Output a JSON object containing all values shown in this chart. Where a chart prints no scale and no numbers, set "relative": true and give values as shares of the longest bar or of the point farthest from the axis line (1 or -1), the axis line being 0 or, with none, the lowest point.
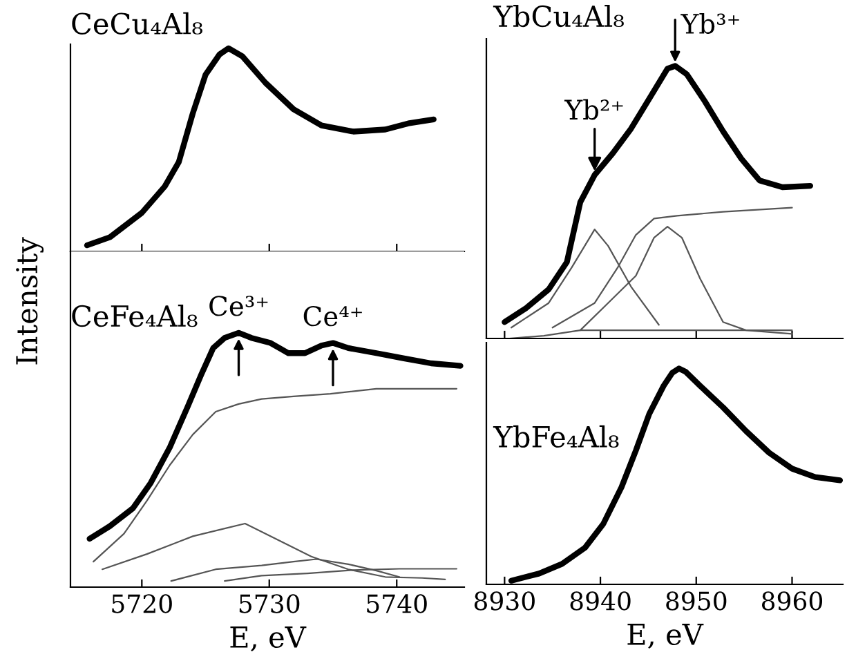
{
  "chart_data": [
    {
      "type": "line",
      "relative": true,
      "title": "CeCu₄Al₈",
      "tick_labels": false,
      "xlim": [
        5714.4,
        5745.3
      ],
      "xticks": [
        5720,
        5730,
        5740
      ],
      "series": [
        {
          "color": "#000000",
          "x": [
            5715.7,
            5717.5,
            5720.0,
            5721.8,
            5722.9,
            5724.0,
            5725.0,
            5726.1,
            5726.8,
            5727.9,
            5729.7,
            5731.9,
            5734.1,
            5736.6,
            5739.1,
            5740.9,
            5742.9
          ],
          "values": [
            0.03,
            0.07,
            0.19,
            0.32,
            0.44,
            0.68,
            0.87,
            0.97,
            1.0,
            0.96,
            0.83,
            0.7,
            0.62,
            0.59,
            0.6,
            0.63,
            0.65
          ]
        }
      ]
    },
    {
      "type": "line",
      "relative": true,
      "title": "CeFe₄Al₈",
      "xlabel": "E, eV",
      "ylabel": "Intensity",
      "tick_labels": "x",
      "xlim": [
        5714.4,
        5745.3
      ],
      "xticks": [
        5720,
        5730,
        5740
      ],
      "annotations": [
        {
          "text": "Ce³⁺",
          "x": 5727.6,
          "y": 1.0
        },
        {
          "text": "Ce⁴⁺",
          "x": 5735.0,
          "y": 0.96
        }
      ],
      "series": [
        {
          "color": "#000000",
          "x": [
            5715.9,
            5717.5,
            5719.3,
            5720.7,
            5722.2,
            5723.6,
            5724.7,
            5725.6,
            5726.5,
            5727.6,
            5728.6,
            5730.1,
            5731.5,
            5732.8,
            5734.1,
            5735.0,
            5736.2,
            5738.4,
            5740.5,
            5742.7,
            5745.0
          ],
          "values": [
            0.19,
            0.24,
            0.31,
            0.41,
            0.55,
            0.71,
            0.84,
            0.94,
            0.98,
            1.0,
            0.98,
            0.96,
            0.92,
            0.92,
            0.95,
            0.96,
            0.94,
            0.92,
            0.9,
            0.88,
            0.87
          ]
        },
        {
          "color": "#555555",
          "x": [
            5716.2,
            5718.6,
            5720.4,
            5722.2,
            5724.0,
            5725.8,
            5727.6,
            5729.4,
            5731.9,
            5734.8,
            5738.4,
            5744.7
          ],
          "values": [
            0.1,
            0.21,
            0.34,
            0.48,
            0.6,
            0.69,
            0.72,
            0.74,
            0.75,
            0.76,
            0.78,
            0.78
          ]
        },
        {
          "color": "#555555",
          "x": [
            5716.9,
            5720.4,
            5724.0,
            5728.1,
            5730.5,
            5733.3,
            5736.2,
            5739.1,
            5742.0,
            5743.8
          ],
          "values": [
            0.07,
            0.13,
            0.2,
            0.25,
            0.19,
            0.12,
            0.07,
            0.04,
            0.036,
            0.03
          ]
        },
        {
          "color": "#555555",
          "x": [
            5722.3,
            5725.8,
            5729.4,
            5731.9,
            5733.7,
            5736.2,
            5738.4,
            5740.2
          ],
          "values": [
            0.024,
            0.07,
            0.085,
            0.1,
            0.11,
            0.09,
            0.065,
            0.04
          ]
        },
        {
          "color": "#555555",
          "x": [
            5726.5,
            5729.4,
            5733.0,
            5736.6,
            5740.2,
            5744.7
          ],
          "values": [
            0.024,
            0.045,
            0.054,
            0.067,
            0.072,
            0.072
          ]
        }
      ]
    },
    {
      "type": "line",
      "relative": true,
      "title": "YbCu₄Al₈",
      "tick_labels": false,
      "xlim": [
        8928.1,
        8965.3
      ],
      "xticks": [
        8930,
        8940,
        8950,
        8960
      ],
      "annotations": [
        {
          "text": "Yb²⁺",
          "x": 8939.4,
          "y": 0.6
        },
        {
          "text": "Yb³⁺",
          "x": 8947.8,
          "y": 1.0
        }
      ],
      "series": [
        {
          "color": "#000000",
          "x": [
            8930.0,
            8932.2,
            8934.6,
            8936.5,
            8937.9,
            8939.4,
            8941.3,
            8943.2,
            8945.1,
            8947.0,
            8947.8,
            8949.0,
            8950.9,
            8952.8,
            8954.7,
            8956.6,
            8959.0,
            8961.9
          ],
          "values": [
            0.06,
            0.11,
            0.18,
            0.28,
            0.5,
            0.6,
            0.68,
            0.77,
            0.88,
            0.99,
            1.0,
            0.97,
            0.87,
            0.76,
            0.66,
            0.58,
            0.555,
            0.56
          ]
        },
        {
          "color": "#555555",
          "x": [
            8930.7,
            8934.6,
            8937.0,
            8939.4,
            8940.8,
            8943.2,
            8946.1
          ],
          "values": [
            0.04,
            0.13,
            0.26,
            0.4,
            0.34,
            0.19,
            0.05
          ]
        },
        {
          "color": "#555555",
          "x": [
            8937.9,
            8940.8,
            8943.7,
            8945.6,
            8947.0,
            8948.5,
            8950.4,
            8952.8,
            8955.2,
            8960.0
          ],
          "values": [
            0.03,
            0.13,
            0.23,
            0.37,
            0.41,
            0.37,
            0.22,
            0.06,
            0.03,
            0.017
          ]
        },
        {
          "color": "#555555",
          "x": [
            8935.0,
            8939.4,
            8941.8,
            8943.7,
            8945.6,
            8948.0,
            8952.8,
            8960.0
          ],
          "values": [
            0.04,
            0.13,
            0.26,
            0.38,
            0.44,
            0.45,
            0.465,
            0.48
          ]
        },
        {
          "color": "#555555",
          "x": [
            8930.5,
            8934.1,
            8937.9,
            8960.0
          ],
          "values": [
            0.0,
            0.01,
            0.03,
            0.03
          ]
        }
      ]
    },
    {
      "type": "line",
      "relative": true,
      "title": "YbFe₄Al₈",
      "xlabel": "E, eV",
      "tick_labels": "x",
      "xlim": [
        8928.1,
        8965.3
      ],
      "xticks": [
        8930,
        8940,
        8950,
        8960
      ],
      "series": [
        {
          "color": "#000000",
          "x": [
            8930.7,
            8933.6,
            8936.0,
            8938.4,
            8940.3,
            8942.2,
            8943.7,
            8945.1,
            8946.6,
            8947.5,
            8948.2,
            8948.9,
            8950.4,
            8952.8,
            8955.2,
            8957.6,
            8960.0,
            8962.4,
            8965.0
          ],
          "values": [
            0.017,
            0.05,
            0.095,
            0.17,
            0.28,
            0.45,
            0.62,
            0.79,
            0.92,
            0.98,
            1.0,
            0.985,
            0.92,
            0.82,
            0.71,
            0.61,
            0.536,
            0.497,
            0.482
          ]
        }
      ]
    }
  ]
}
